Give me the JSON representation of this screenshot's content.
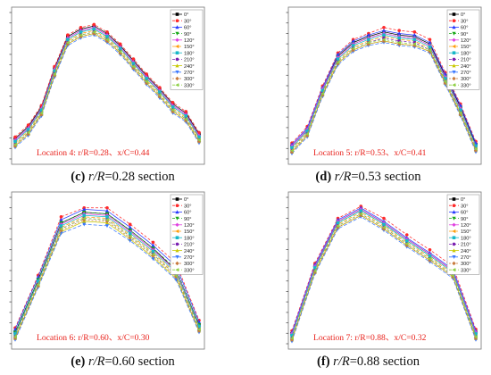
{
  "legend_labels": [
    "0°",
    "30°",
    "60°",
    "90°",
    "120°",
    "150°",
    "180°",
    "210°",
    "240°",
    "270°",
    "300°",
    "330°"
  ],
  "series_colors": [
    "#000000",
    "#ff2a2a",
    "#2a3cff",
    "#18a818",
    "#e040e0",
    "#ff9d0a",
    "#18b8c8",
    "#7a1fb0",
    "#c8c800",
    "#3a78ff",
    "#c87a3c",
    "#8fd046"
  ],
  "panels": [
    {
      "caption": {
        "letter": "(c)",
        "rR": "r/R",
        "rest": "=0.28 section"
      },
      "location_label": "Location 4: r/R=0.28、x/C=0.44"
    },
    {
      "caption": {
        "letter": "(d)",
        "rR": "r/R",
        "rest": "=0.53 section"
      },
      "location_label": "Location 5: r/R=0.53、x/C=0.41"
    },
    {
      "caption": {
        "letter": "(e)",
        "rR": "r/R",
        "rest": "=0.60 section"
      },
      "location_label": "Location 6: r/R=0.60、x/C=0.30"
    },
    {
      "caption": {
        "letter": "(f)",
        "rR": "r/R",
        "rest": "=0.88 section"
      },
      "location_label": "Location 7: r/R=0.88、x/C=0.32"
    }
  ],
  "chart_data": [
    {
      "type": "line",
      "x": [
        1,
        2,
        3,
        4,
        5,
        6,
        7,
        8,
        9,
        10,
        11,
        12,
        13,
        14,
        15
      ],
      "ylim": [
        0,
        1
      ],
      "legend_position": "top-right",
      "grid": false,
      "series": [
        {
          "name": "0°",
          "values": [
            0.16,
            0.24,
            0.37,
            0.63,
            0.84,
            0.89,
            0.91,
            0.86,
            0.78,
            0.68,
            0.58,
            0.49,
            0.39,
            0.33,
            0.19
          ]
        },
        {
          "name": "30°",
          "values": [
            0.17,
            0.25,
            0.38,
            0.64,
            0.85,
            0.9,
            0.92,
            0.87,
            0.79,
            0.69,
            0.59,
            0.5,
            0.4,
            0.34,
            0.2
          ]
        },
        {
          "name": "60°",
          "values": [
            0.15,
            0.23,
            0.36,
            0.62,
            0.83,
            0.88,
            0.9,
            0.85,
            0.77,
            0.67,
            0.57,
            0.48,
            0.38,
            0.32,
            0.18
          ]
        },
        {
          "name": "90°",
          "values": [
            0.14,
            0.22,
            0.35,
            0.61,
            0.82,
            0.87,
            0.89,
            0.84,
            0.76,
            0.66,
            0.56,
            0.47,
            0.37,
            0.31,
            0.17
          ]
        },
        {
          "name": "120°",
          "values": [
            0.15,
            0.23,
            0.36,
            0.62,
            0.83,
            0.88,
            0.9,
            0.85,
            0.77,
            0.67,
            0.57,
            0.48,
            0.38,
            0.32,
            0.18
          ]
        },
        {
          "name": "150°",
          "values": [
            0.13,
            0.21,
            0.34,
            0.6,
            0.81,
            0.86,
            0.88,
            0.83,
            0.75,
            0.65,
            0.55,
            0.46,
            0.36,
            0.3,
            0.16
          ]
        },
        {
          "name": "180°",
          "values": [
            0.14,
            0.22,
            0.35,
            0.61,
            0.82,
            0.87,
            0.89,
            0.84,
            0.76,
            0.66,
            0.56,
            0.47,
            0.37,
            0.31,
            0.17
          ]
        },
        {
          "name": "210°",
          "values": [
            0.12,
            0.2,
            0.33,
            0.59,
            0.8,
            0.85,
            0.87,
            0.82,
            0.74,
            0.64,
            0.54,
            0.45,
            0.35,
            0.29,
            0.15
          ]
        },
        {
          "name": "240°",
          "values": [
            0.11,
            0.19,
            0.32,
            0.58,
            0.79,
            0.84,
            0.86,
            0.81,
            0.73,
            0.63,
            0.53,
            0.44,
            0.34,
            0.28,
            0.14
          ]
        },
        {
          "name": "270°",
          "values": [
            0.1,
            0.18,
            0.31,
            0.57,
            0.78,
            0.83,
            0.85,
            0.8,
            0.72,
            0.62,
            0.52,
            0.43,
            0.33,
            0.27,
            0.13
          ]
        },
        {
          "name": "300°",
          "values": [
            0.11,
            0.19,
            0.32,
            0.58,
            0.79,
            0.84,
            0.86,
            0.81,
            0.73,
            0.63,
            0.53,
            0.44,
            0.34,
            0.28,
            0.14
          ]
        },
        {
          "name": "330°",
          "values": [
            0.12,
            0.2,
            0.33,
            0.59,
            0.8,
            0.85,
            0.87,
            0.82,
            0.74,
            0.64,
            0.54,
            0.45,
            0.35,
            0.29,
            0.15
          ]
        }
      ]
    },
    {
      "type": "line",
      "x": [
        1,
        2,
        3,
        4,
        5,
        6,
        7,
        8,
        9,
        10,
        11,
        12,
        13
      ],
      "ylim": [
        0,
        1
      ],
      "legend_position": "top-right",
      "grid": false,
      "series": [
        {
          "name": "0°",
          "values": [
            0.11,
            0.22,
            0.49,
            0.71,
            0.8,
            0.84,
            0.87,
            0.85,
            0.84,
            0.79,
            0.58,
            0.37,
            0.12
          ]
        },
        {
          "name": "30°",
          "values": [
            0.13,
            0.24,
            0.51,
            0.73,
            0.82,
            0.86,
            0.9,
            0.88,
            0.87,
            0.82,
            0.6,
            0.39,
            0.14
          ]
        },
        {
          "name": "60°",
          "values": [
            0.12,
            0.23,
            0.5,
            0.72,
            0.81,
            0.85,
            0.88,
            0.86,
            0.85,
            0.8,
            0.59,
            0.38,
            0.13
          ]
        },
        {
          "name": "90°",
          "values": [
            0.1,
            0.21,
            0.48,
            0.7,
            0.79,
            0.83,
            0.86,
            0.84,
            0.83,
            0.78,
            0.57,
            0.36,
            0.11
          ]
        },
        {
          "name": "120°",
          "values": [
            0.11,
            0.22,
            0.49,
            0.7,
            0.79,
            0.83,
            0.86,
            0.84,
            0.83,
            0.78,
            0.57,
            0.36,
            0.11
          ]
        },
        {
          "name": "150°",
          "values": [
            0.09,
            0.2,
            0.47,
            0.68,
            0.77,
            0.81,
            0.84,
            0.82,
            0.81,
            0.76,
            0.55,
            0.34,
            0.1
          ]
        },
        {
          "name": "180°",
          "values": [
            0.1,
            0.21,
            0.48,
            0.69,
            0.78,
            0.82,
            0.85,
            0.83,
            0.82,
            0.77,
            0.56,
            0.35,
            0.11
          ]
        },
        {
          "name": "210°",
          "values": [
            0.08,
            0.19,
            0.46,
            0.67,
            0.76,
            0.8,
            0.83,
            0.81,
            0.8,
            0.75,
            0.54,
            0.33,
            0.09
          ]
        },
        {
          "name": "240°",
          "values": [
            0.07,
            0.18,
            0.45,
            0.66,
            0.75,
            0.79,
            0.81,
            0.79,
            0.78,
            0.74,
            0.53,
            0.32,
            0.08
          ]
        },
        {
          "name": "270°",
          "values": [
            0.06,
            0.17,
            0.44,
            0.65,
            0.74,
            0.78,
            0.8,
            0.78,
            0.77,
            0.73,
            0.52,
            0.31,
            0.07
          ]
        },
        {
          "name": "300°",
          "values": [
            0.07,
            0.18,
            0.45,
            0.66,
            0.75,
            0.79,
            0.81,
            0.79,
            0.78,
            0.74,
            0.53,
            0.32,
            0.08
          ]
        },
        {
          "name": "330°",
          "values": [
            0.08,
            0.19,
            0.46,
            0.67,
            0.76,
            0.8,
            0.82,
            0.8,
            0.79,
            0.75,
            0.54,
            0.33,
            0.09
          ]
        }
      ]
    },
    {
      "type": "line",
      "x": [
        1,
        2,
        3,
        4,
        5,
        6,
        7,
        8,
        9
      ],
      "ylim": [
        0,
        1
      ],
      "legend_position": "top-right",
      "grid": false,
      "series": [
        {
          "name": "0°",
          "values": [
            0.1,
            0.45,
            0.83,
            0.9,
            0.89,
            0.78,
            0.66,
            0.51,
            0.15
          ]
        },
        {
          "name": "30°",
          "values": [
            0.13,
            0.48,
            0.87,
            0.93,
            0.93,
            0.82,
            0.7,
            0.56,
            0.18
          ]
        },
        {
          "name": "60°",
          "values": [
            0.12,
            0.47,
            0.85,
            0.92,
            0.91,
            0.8,
            0.68,
            0.54,
            0.17
          ]
        },
        {
          "name": "90°",
          "values": [
            0.1,
            0.45,
            0.83,
            0.9,
            0.89,
            0.78,
            0.66,
            0.52,
            0.15
          ]
        },
        {
          "name": "120°",
          "values": [
            0.09,
            0.44,
            0.82,
            0.89,
            0.88,
            0.77,
            0.65,
            0.51,
            0.14
          ]
        },
        {
          "name": "150°",
          "values": [
            0.08,
            0.43,
            0.8,
            0.87,
            0.86,
            0.75,
            0.63,
            0.49,
            0.13
          ]
        },
        {
          "name": "180°",
          "values": [
            0.09,
            0.44,
            0.81,
            0.88,
            0.87,
            0.76,
            0.64,
            0.5,
            0.14
          ]
        },
        {
          "name": "210°",
          "values": [
            0.07,
            0.42,
            0.79,
            0.86,
            0.85,
            0.74,
            0.62,
            0.48,
            0.12
          ]
        },
        {
          "name": "240°",
          "values": [
            0.06,
            0.41,
            0.77,
            0.84,
            0.83,
            0.72,
            0.6,
            0.46,
            0.11
          ]
        },
        {
          "name": "270°",
          "values": [
            0.05,
            0.4,
            0.76,
            0.82,
            0.81,
            0.71,
            0.59,
            0.45,
            0.1
          ]
        },
        {
          "name": "300°",
          "values": [
            0.06,
            0.41,
            0.78,
            0.85,
            0.84,
            0.73,
            0.61,
            0.47,
            0.11
          ]
        },
        {
          "name": "330°",
          "values": [
            0.07,
            0.42,
            0.79,
            0.86,
            0.85,
            0.74,
            0.62,
            0.48,
            0.12
          ]
        }
      ]
    },
    {
      "type": "line",
      "x": [
        1,
        2,
        3,
        4,
        5,
        6,
        7,
        8,
        9
      ],
      "ylim": [
        0,
        1
      ],
      "legend_position": "top-right",
      "grid": false,
      "series": [
        {
          "name": "0°",
          "values": [
            0.09,
            0.54,
            0.84,
            0.92,
            0.83,
            0.72,
            0.62,
            0.51,
            0.1
          ]
        },
        {
          "name": "30°",
          "values": [
            0.11,
            0.56,
            0.86,
            0.94,
            0.86,
            0.75,
            0.65,
            0.54,
            0.12
          ]
        },
        {
          "name": "60°",
          "values": [
            0.1,
            0.55,
            0.85,
            0.93,
            0.84,
            0.73,
            0.63,
            0.52,
            0.11
          ]
        },
        {
          "name": "90°",
          "values": [
            0.08,
            0.53,
            0.83,
            0.91,
            0.82,
            0.71,
            0.61,
            0.5,
            0.09
          ]
        },
        {
          "name": "120°",
          "values": [
            0.09,
            0.54,
            0.84,
            0.92,
            0.83,
            0.72,
            0.62,
            0.51,
            0.1
          ]
        },
        {
          "name": "150°",
          "values": [
            0.07,
            0.52,
            0.82,
            0.9,
            0.81,
            0.7,
            0.6,
            0.49,
            0.08
          ]
        },
        {
          "name": "180°",
          "values": [
            0.08,
            0.53,
            0.83,
            0.91,
            0.82,
            0.71,
            0.61,
            0.5,
            0.09
          ]
        },
        {
          "name": "210°",
          "values": [
            0.06,
            0.51,
            0.81,
            0.89,
            0.8,
            0.69,
            0.59,
            0.48,
            0.07
          ]
        },
        {
          "name": "240°",
          "values": [
            0.05,
            0.5,
            0.8,
            0.88,
            0.79,
            0.68,
            0.58,
            0.47,
            0.06
          ]
        },
        {
          "name": "270°",
          "values": [
            0.04,
            0.49,
            0.79,
            0.87,
            0.78,
            0.67,
            0.57,
            0.46,
            0.05
          ]
        },
        {
          "name": "300°",
          "values": [
            0.05,
            0.5,
            0.8,
            0.88,
            0.79,
            0.68,
            0.58,
            0.47,
            0.06
          ]
        },
        {
          "name": "330°",
          "values": [
            0.06,
            0.51,
            0.81,
            0.89,
            0.8,
            0.69,
            0.59,
            0.48,
            0.07
          ]
        }
      ]
    }
  ]
}
